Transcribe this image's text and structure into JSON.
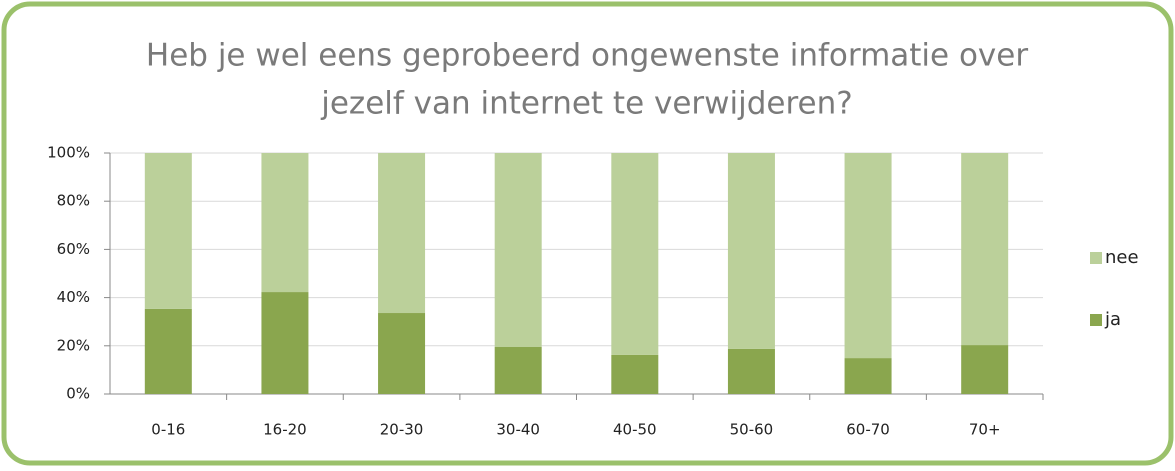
{
  "chart_data": {
    "type": "stacked_bar",
    "title": [
      "Heb je wel eens geprobeerd ongewenste informatie over",
      "jezelf van internet te verwijderen?"
    ],
    "categories": [
      "0-16",
      "16-20",
      "20-30",
      "30-40",
      "40-50",
      "50-60",
      "60-70",
      "70+"
    ],
    "series": [
      {
        "name": "ja",
        "color": "#8aa64e",
        "values": [
          35.3,
          42.3,
          33.6,
          19.5,
          16.2,
          18.7,
          14.9,
          20.3
        ]
      },
      {
        "name": "nee",
        "color": "#bbd09a",
        "values": [
          64.7,
          57.7,
          66.4,
          80.5,
          83.8,
          81.3,
          85.1,
          79.7
        ]
      }
    ],
    "ylim": [
      0,
      100
    ],
    "yticks": [
      {
        "value": 0,
        "label": "0%"
      },
      {
        "value": 20,
        "label": "20%"
      },
      {
        "value": 40,
        "label": "40%"
      },
      {
        "value": 60,
        "label": "60%"
      },
      {
        "value": 80,
        "label": "80%"
      },
      {
        "value": 100,
        "label": "100%"
      }
    ],
    "grid": true,
    "legend": "right"
  }
}
